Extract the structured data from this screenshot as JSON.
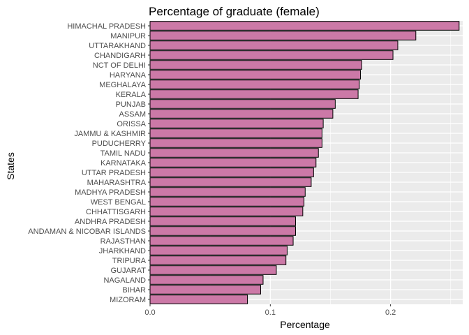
{
  "chart_data": {
    "type": "bar",
    "orientation": "horizontal",
    "title": "Percentage of graduate (female)",
    "xlabel": "Percentage",
    "ylabel": "States",
    "xlim": [
      0,
      0.26
    ],
    "xticks": [
      0.0,
      0.1,
      0.2
    ],
    "xtick_labels": [
      "0.0",
      "0.1",
      "0.2"
    ],
    "grid": true,
    "bar_fill": "#cc79a7",
    "bar_stroke": "#000000",
    "panel_background": "#ebebeb",
    "categories": [
      "HIMACHAL PRADESH",
      "MANIPUR",
      "UTTARAKHAND",
      "CHANDIGARH",
      "NCT OF DELHI",
      "HARYANA",
      "MEGHALAYA",
      "KERALA",
      "PUNJAB",
      "ASSAM",
      "ORISSA",
      "JAMMU & KASHMIR",
      "PUDUCHERRY",
      "TAMIL NADU",
      "KARNATAKA",
      "UTTAR PRADESH",
      "MAHARASHTRA",
      "MADHYA PRADESH",
      "WEST BENGAL",
      "CHHATTISGARH",
      "ANDHRA PRADESH",
      "ANDAMAN & NICOBAR ISLANDS",
      "RAJASTHAN",
      "JHARKHAND",
      "TRIPURA",
      "GUJARAT",
      "NAGALAND",
      "BIHAR",
      "MIZORAM"
    ],
    "values": [
      0.257,
      0.221,
      0.206,
      0.202,
      0.176,
      0.175,
      0.174,
      0.173,
      0.154,
      0.152,
      0.144,
      0.143,
      0.143,
      0.14,
      0.138,
      0.136,
      0.134,
      0.129,
      0.128,
      0.127,
      0.121,
      0.121,
      0.119,
      0.114,
      0.113,
      0.105,
      0.094,
      0.092,
      0.081
    ]
  }
}
